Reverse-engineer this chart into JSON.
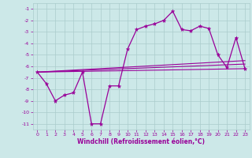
{
  "title": "",
  "xlabel": "Windchill (Refroidissement éolien,°C)",
  "background_color": "#cce8e8",
  "grid_color": "#aacccc",
  "line_color": "#990099",
  "xlim": [
    -0.5,
    23.5
  ],
  "ylim": [
    -11.5,
    -0.5
  ],
  "yticks": [
    -11,
    -10,
    -9,
    -8,
    -7,
    -6,
    -5,
    -4,
    -3,
    -2,
    -1
  ],
  "xticks": [
    0,
    1,
    2,
    3,
    4,
    5,
    6,
    7,
    8,
    9,
    10,
    11,
    12,
    13,
    14,
    15,
    16,
    17,
    18,
    19,
    20,
    21,
    22,
    23
  ],
  "main_series": [
    [
      0,
      -6.5
    ],
    [
      1,
      -7.5
    ],
    [
      2,
      -9.0
    ],
    [
      3,
      -8.5
    ],
    [
      4,
      -8.3
    ],
    [
      5,
      -6.5
    ],
    [
      6,
      -11.0
    ],
    [
      7,
      -11.0
    ],
    [
      8,
      -7.7
    ],
    [
      9,
      -7.7
    ],
    [
      10,
      -4.5
    ],
    [
      11,
      -2.8
    ],
    [
      12,
      -2.5
    ],
    [
      13,
      -2.3
    ],
    [
      14,
      -2.0
    ],
    [
      15,
      -1.2
    ],
    [
      16,
      -2.8
    ],
    [
      17,
      -2.9
    ],
    [
      18,
      -2.5
    ],
    [
      19,
      -2.7
    ],
    [
      20,
      -5.0
    ],
    [
      21,
      -6.1
    ],
    [
      22,
      -3.5
    ],
    [
      23,
      -6.2
    ]
  ],
  "line1": [
    [
      0,
      -6.5
    ],
    [
      23,
      -6.2
    ]
  ],
  "line2": [
    [
      0,
      -6.5
    ],
    [
      23,
      -5.8
    ]
  ],
  "line3": [
    [
      0,
      -6.5
    ],
    [
      23,
      -5.5
    ]
  ]
}
